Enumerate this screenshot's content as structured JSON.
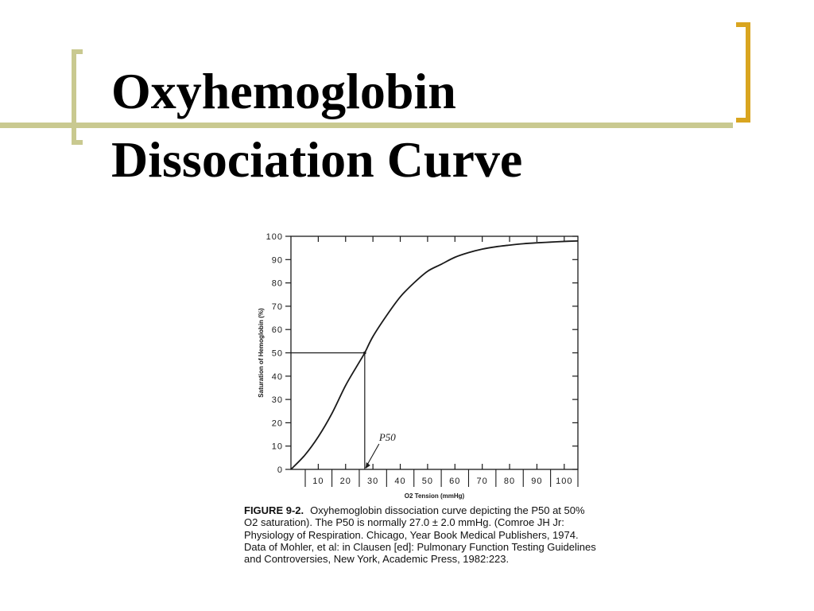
{
  "slide": {
    "title_line1": "Oxyhemoglobin",
    "title_line2": "Dissociation Curve",
    "colors": {
      "rule": "#c9c990",
      "bracket_left": "#c9c990",
      "bracket_right": "#d9a520"
    }
  },
  "chart_data": {
    "type": "line",
    "xlabel": "O2 Tension (mmHg)",
    "ylabel": "Saturation of Hemoglobin (%)",
    "xlim": [
      0,
      105
    ],
    "ylim": [
      0,
      100
    ],
    "x_ticks": [
      "10",
      "20",
      "30",
      "40",
      "50",
      "60",
      "70",
      "80",
      "90",
      "100"
    ],
    "y_ticks": [
      "0",
      "10",
      "20",
      "30",
      "40",
      "50",
      "60",
      "70",
      "80",
      "90",
      "100"
    ],
    "grid": false,
    "annotation": {
      "label": "P50",
      "x": 27,
      "y": 50
    },
    "series": [
      {
        "x": [
          0,
          5,
          10,
          15,
          20,
          25,
          27,
          30,
          35,
          40,
          45,
          50,
          55,
          60,
          65,
          70,
          75,
          80,
          85,
          90,
          95,
          100,
          105
        ],
        "y": [
          0,
          6,
          14,
          24,
          36,
          46,
          50,
          57,
          66,
          74,
          80,
          85,
          88,
          91,
          93,
          94.5,
          95.5,
          96.2,
          96.8,
          97.2,
          97.5,
          97.8,
          98
        ]
      }
    ]
  },
  "caption": {
    "label": "FIGURE 9-2.",
    "text": "Oxyhemoglobin dissociation curve depicting the P50 at 50% O2 saturation). The P50 is normally 27.0 ± 2.0 mmHg. (Comroe JH Jr: Physiology of Respiration. Chicago, Year Book Medical Publishers, 1974. Data of Mohler, et al: in Clausen [ed]: Pulmonary Function Testing Guidelines and Controversies, New York, Academic Press, 1982:223."
  }
}
